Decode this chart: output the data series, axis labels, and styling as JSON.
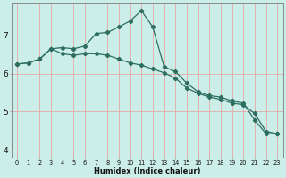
{
  "xlabel": "Humidex (Indice chaleur)",
  "bg_color": "#cceee8",
  "grid_color_v": "#f0a0a0",
  "grid_color_h": "#f0a0a0",
  "line_color": "#2e6e60",
  "xlim": [
    -0.5,
    23.5
  ],
  "ylim": [
    3.8,
    7.85
  ],
  "yticks": [
    4,
    5,
    6,
    7
  ],
  "xticks": [
    0,
    1,
    2,
    3,
    4,
    5,
    6,
    7,
    8,
    9,
    10,
    11,
    12,
    13,
    14,
    15,
    16,
    17,
    18,
    19,
    20,
    21,
    22,
    23
  ],
  "line1_x": [
    0,
    1,
    2,
    3,
    4,
    5,
    6,
    7,
    8,
    9,
    10,
    11,
    12,
    13,
    14,
    15,
    16,
    17,
    18,
    19,
    20,
    21,
    22,
    23
  ],
  "line1_y": [
    6.25,
    6.28,
    6.38,
    6.65,
    6.68,
    6.65,
    6.72,
    7.05,
    7.08,
    7.22,
    7.38,
    7.65,
    7.22,
    6.18,
    6.05,
    5.75,
    5.52,
    5.42,
    5.38,
    5.28,
    5.22,
    4.78,
    4.42,
    4.42
  ],
  "line2_x": [
    0,
    1,
    2,
    3,
    4,
    5,
    6,
    7,
    8,
    9,
    10,
    11,
    12,
    13,
    14,
    15,
    16,
    17,
    18,
    19,
    20,
    21,
    22,
    23
  ],
  "line2_y": [
    6.25,
    6.28,
    6.38,
    6.65,
    6.52,
    6.48,
    6.52,
    6.52,
    6.48,
    6.38,
    6.28,
    6.22,
    6.12,
    6.02,
    5.88,
    5.62,
    5.48,
    5.38,
    5.32,
    5.22,
    5.18,
    4.95,
    4.48,
    4.42
  ]
}
